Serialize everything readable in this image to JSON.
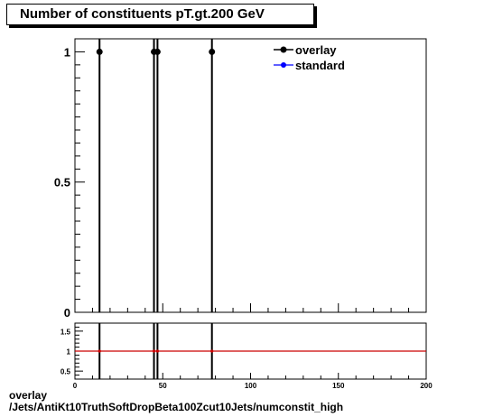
{
  "title": "Number of constituents pT.gt.200 GeV",
  "footer": {
    "line1": "overlay",
    "line2": "/Jets/AntiKt10TruthSoftDropBeta100Zcut10Jets/numconstit_high"
  },
  "colors": {
    "overlay": "#000000",
    "standard": "#0000ff",
    "ratio_line": "#cc0000"
  },
  "chart_data": [
    {
      "type": "scatter",
      "title": "Number of constituents pT.gt.200 GeV",
      "xlim": [
        0,
        200
      ],
      "ylim": [
        0,
        1.05
      ],
      "y_ticks": [
        0,
        0.5,
        1
      ],
      "y_tick_labels": [
        "0",
        "0.5",
        "1"
      ],
      "legend": "top-right",
      "series": [
        {
          "name": "overlay",
          "x": [
            14,
            45,
            47,
            78
          ],
          "y": [
            1,
            1,
            1,
            1
          ]
        },
        {
          "name": "standard",
          "x": [
            14,
            45,
            47,
            78
          ],
          "y": [
            1,
            1,
            1,
            1
          ]
        }
      ]
    },
    {
      "type": "line",
      "xlim": [
        0,
        200
      ],
      "ylim": [
        0.3,
        1.7
      ],
      "y_ticks": [
        0.5,
        1,
        1.5
      ],
      "y_tick_labels": [
        "0.5",
        "1",
        "1.5"
      ],
      "x_ticks": [
        0,
        50,
        100,
        150,
        200
      ],
      "x_tick_labels": [
        "0",
        "50",
        "100",
        "150",
        "200"
      ],
      "reference_line": 1,
      "series": [
        {
          "x": [
            14,
            45,
            47,
            78
          ],
          "y": [
            1,
            1,
            1,
            1
          ]
        }
      ]
    }
  ]
}
